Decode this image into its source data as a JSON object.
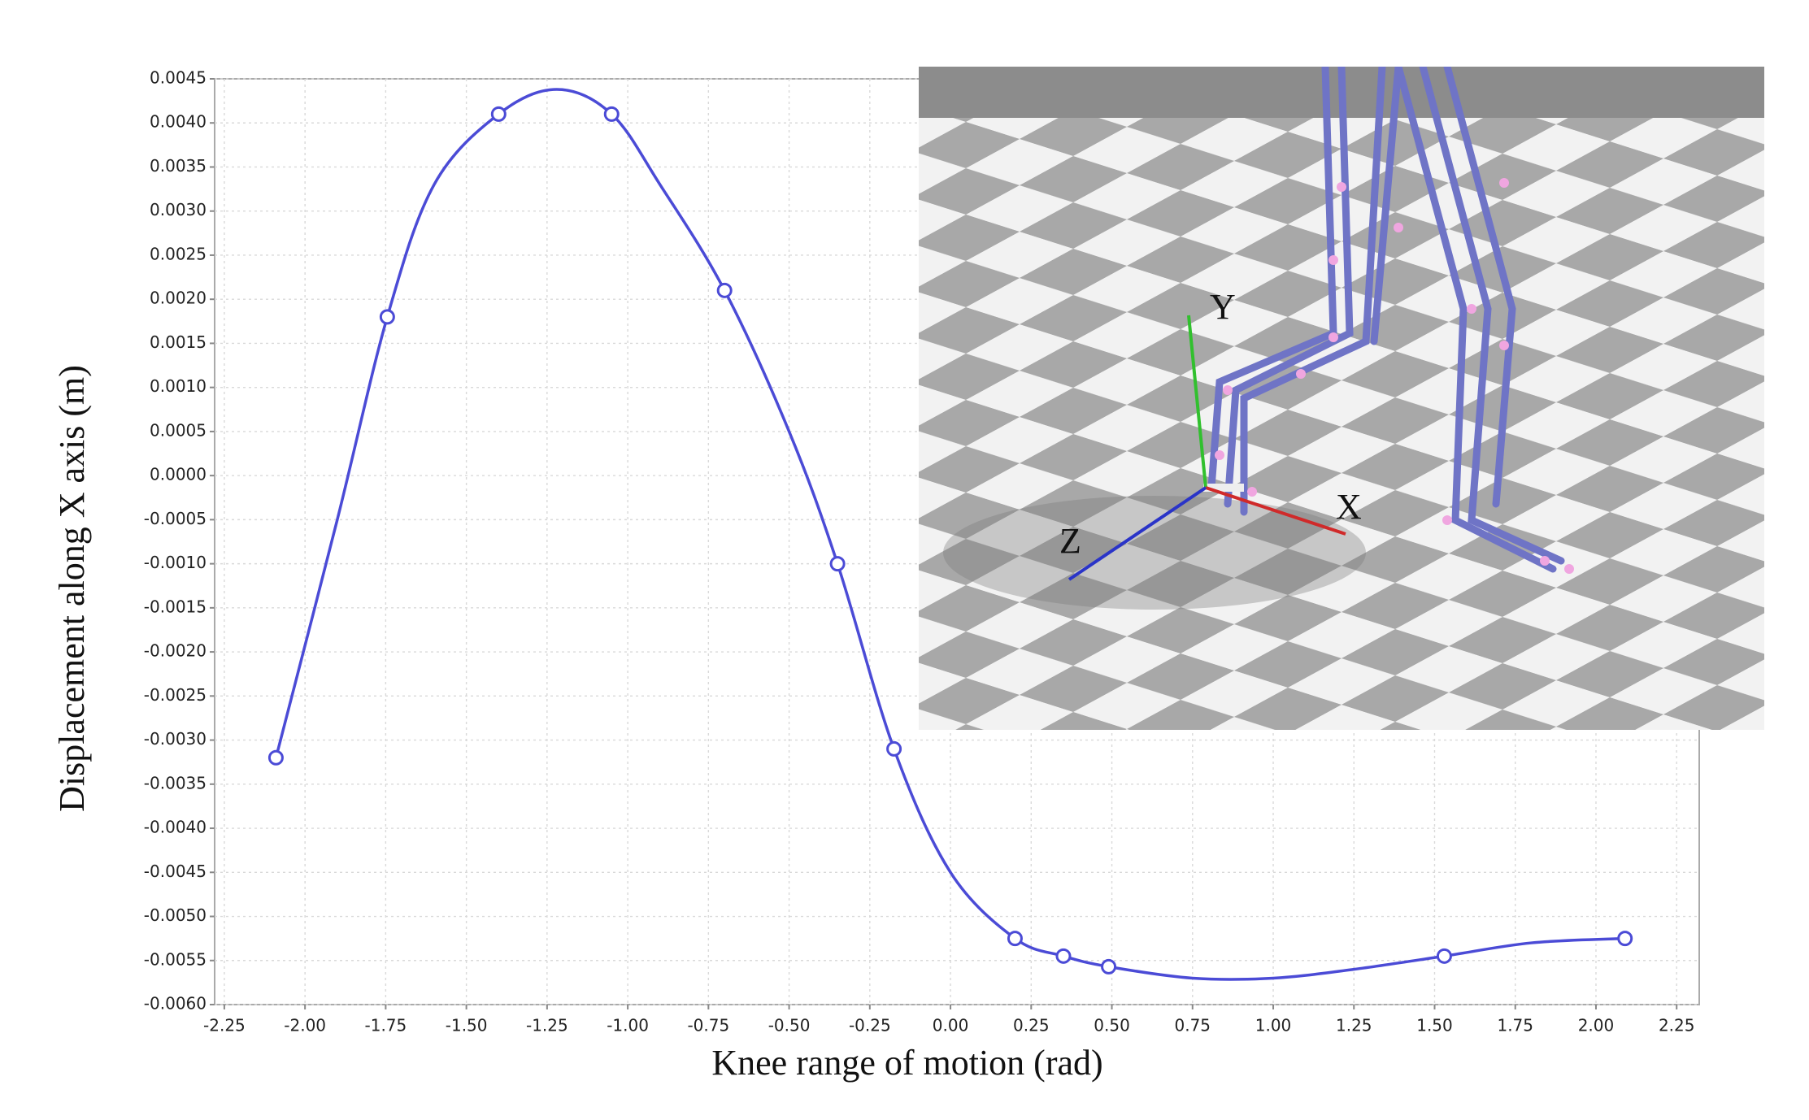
{
  "chart_data": {
    "type": "line",
    "x_label": "Knee range of motion (rad)",
    "y_label": "Displacement along X axis (m)",
    "color": "#4b4bd6",
    "x": [
      -2.09,
      -1.9,
      -1.745,
      -1.6,
      -1.4,
      -1.22,
      -1.05,
      -0.9,
      -0.7,
      -0.5,
      -0.35,
      -0.175,
      0,
      0.2,
      0.35,
      0.49,
      0.75,
      1.0,
      1.25,
      1.53,
      1.8,
      2.09
    ],
    "values": [
      -0.0032,
      -0.0005,
      0.0018,
      0.0033,
      0.0041,
      0.00438,
      0.0041,
      0.0033,
      0.0021,
      0.0005,
      -0.001,
      -0.0031,
      -0.0045,
      -0.00525,
      -0.00545,
      -0.00557,
      -0.0057,
      -0.0057,
      -0.0056,
      -0.00545,
      -0.0053,
      -0.00525
    ],
    "markers": {
      "x": [
        -2.09,
        -1.745,
        -1.4,
        -1.05,
        -0.7,
        -0.35,
        -0.175,
        0.2,
        0.35,
        0.49,
        1.53,
        2.09
      ],
      "values": [
        -0.0032,
        0.0018,
        0.0041,
        0.0041,
        0.0021,
        -0.001,
        -0.0031,
        -0.00525,
        -0.00545,
        -0.00557,
        -0.00545,
        -0.00525
      ]
    },
    "xlim": [
      -2.28,
      2.32
    ],
    "ylim": [
      -0.006,
      0.0045
    ],
    "xticks": [
      -2.25,
      {
        "value": -2,
        "label": "-2.00"
      },
      -1.75,
      {
        "value": -1.5,
        "label": "-1.50"
      },
      -1.25,
      {
        "value": -1,
        "label": "-1.00"
      },
      -0.75,
      {
        "value": -0.5,
        "label": "-0.50"
      },
      -0.25,
      {
        "value": 0,
        "label": "0.00"
      },
      0.25,
      {
        "value": 0.5,
        "label": "0.50"
      },
      0.75,
      {
        "value": 1,
        "label": "1.00"
      },
      1.25,
      {
        "value": 1.5,
        "label": "1.50"
      },
      1.75,
      {
        "value": 2,
        "label": "2.00"
      },
      2.25
    ],
    "yticks": [
      0.0045,
      {
        "value": 0.004,
        "label": "0.0040"
      },
      0.0035,
      {
        "value": 0.003,
        "label": "0.0030"
      },
      0.0025,
      {
        "value": 0.002,
        "label": "0.0020"
      },
      0.0015,
      {
        "value": 0.001,
        "label": "0.0010"
      },
      0.0005,
      {
        "value": 0,
        "label": "0.0000"
      },
      -0.0005,
      {
        "value": -0.001,
        "label": "-0.0010"
      },
      -0.0015,
      {
        "value": -0.002,
        "label": "-0.0020"
      },
      -0.0025,
      {
        "value": -0.003,
        "label": "-0.0030"
      },
      -0.0035,
      {
        "value": -0.004,
        "label": "-0.0040"
      },
      -0.0045,
      {
        "value": -0.005,
        "label": "-0.0050"
      },
      -0.0055,
      {
        "value": -0.006,
        "label": "-0.0060"
      }
    ],
    "grid": true
  },
  "inset": {
    "axis_labels": {
      "x": "X",
      "y": "Y",
      "z": "Z"
    }
  }
}
